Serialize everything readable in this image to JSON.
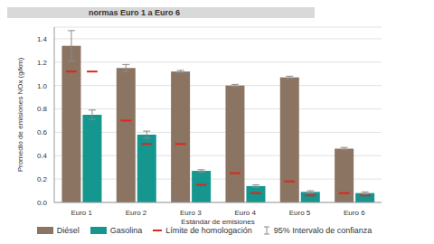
{
  "chart_data": {
    "type": "bar",
    "title": "normas Euro 1 a Euro 6",
    "x_label": "Estándar de emisiones",
    "y_label": "Promedio de emisiones NOx (g/km)",
    "categories": [
      "Euro 1",
      "Euro 2",
      "Euro 3",
      "Euro 4",
      "Euro 5",
      "Euro 6"
    ],
    "series": [
      {
        "name": "Diésel",
        "color": "#8c7462",
        "values": [
          1.34,
          1.15,
          1.12,
          1.0,
          1.07,
          0.46
        ],
        "error": [
          0.13,
          0.03,
          0.01,
          0.01,
          0.01,
          0.01
        ],
        "limit": [
          1.12,
          0.7,
          0.5,
          0.25,
          0.18,
          0.08
        ]
      },
      {
        "name": "Gasolina",
        "color": "#15968f",
        "values": [
          0.75,
          0.58,
          0.27,
          0.14,
          0.09,
          0.08
        ],
        "error": [
          0.04,
          0.03,
          0.01,
          0.01,
          0.01,
          0.01
        ],
        "limit": [
          1.12,
          0.5,
          0.15,
          0.08,
          0.06,
          0.06
        ]
      }
    ],
    "limit_legend": {
      "name": "Límite de homologación",
      "color": "#e3231c"
    },
    "error_legend": {
      "name": "95% Intervalo de confianza",
      "color": "#8a8a8a"
    },
    "ylim": [
      0,
      1.5
    ],
    "yticks": [
      {
        "value": 0,
        "label": "0.0"
      },
      0.2,
      0.4,
      0.6,
      0.8,
      {
        "value": 1,
        "label": "1.0"
      },
      1.2,
      1.4
    ],
    "grid": true,
    "legend": "bottom"
  }
}
